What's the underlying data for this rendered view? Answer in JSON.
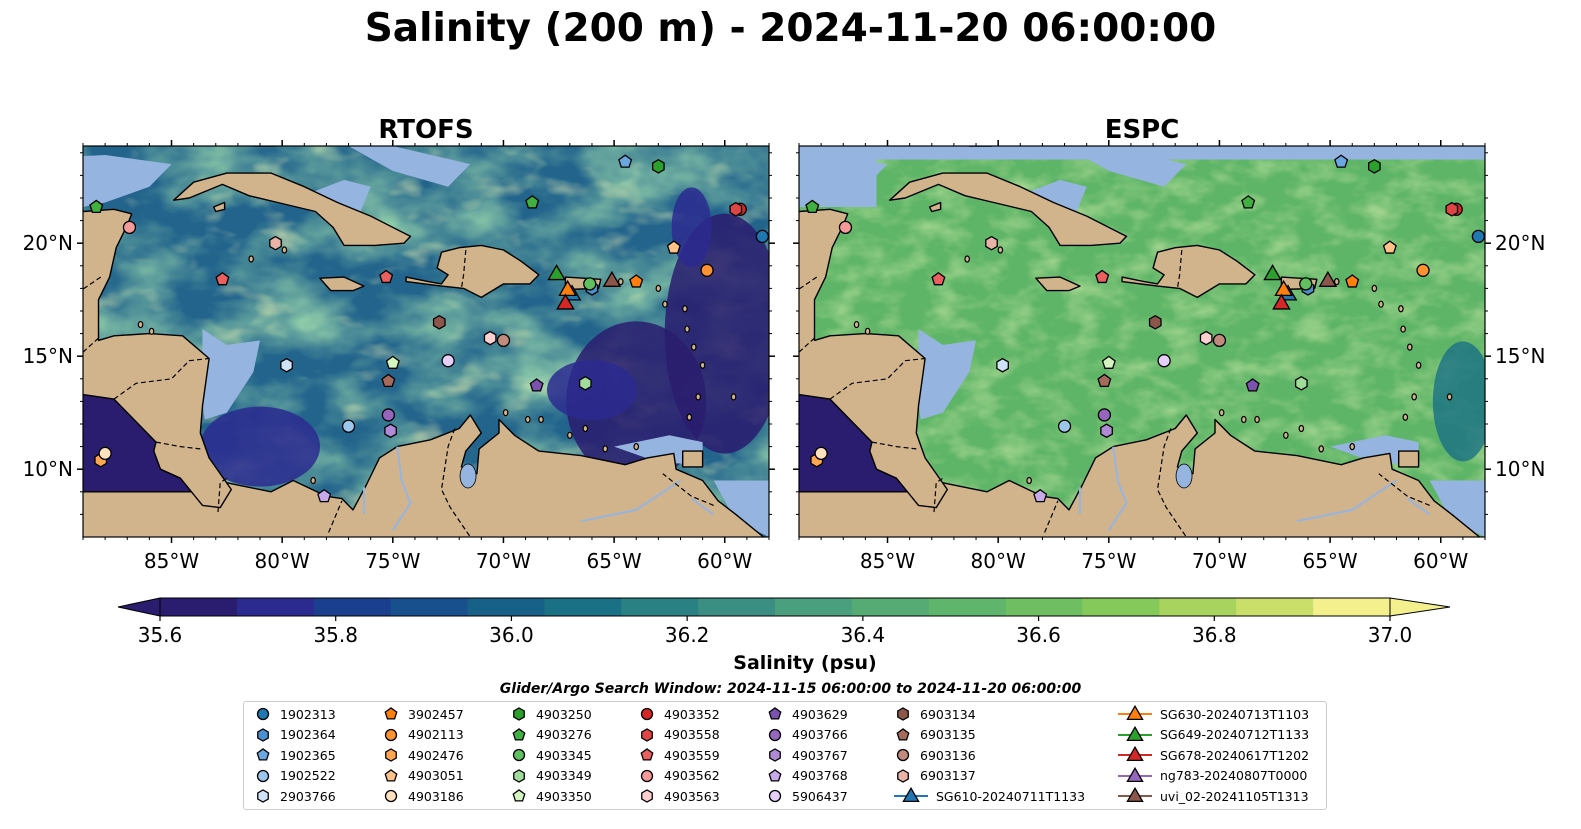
{
  "title": "Salinity (200 m) - 2024-11-20 06:00:00",
  "chart_data": [
    {
      "type": "heatmap",
      "title": "RTOFS",
      "x_ticks": [
        "85°W",
        "80°W",
        "75°W",
        "70°W",
        "65°W",
        "60°W"
      ],
      "y_ticks": [
        "20°N",
        "15°N",
        "10°N"
      ],
      "xlim": [
        -89,
        -58
      ],
      "ylim": [
        7,
        24.3
      ],
      "field_range": [
        35.6,
        37.0
      ]
    },
    {
      "type": "heatmap",
      "title": "ESPC",
      "x_ticks": [
        "85°W",
        "80°W",
        "75°W",
        "70°W",
        "65°W",
        "60°W"
      ],
      "y_ticks": [
        "20°N",
        "15°N",
        "10°N"
      ],
      "xlim": [
        -89,
        -58
      ],
      "ylim": [
        7,
        24.3
      ],
      "field_range": [
        35.6,
        37.0
      ]
    }
  ],
  "colorbar": {
    "label": "Salinity (psu)",
    "ticks": [
      "35.6",
      "35.8",
      "36.0",
      "36.2",
      "36.4",
      "36.6",
      "36.8",
      "37.0"
    ],
    "colors": [
      "#2a1c6e",
      "#2b2a8f",
      "#1b3f8f",
      "#17508c",
      "#176088",
      "#1a7084",
      "#2a8184",
      "#3a8f82",
      "#4a9f7e",
      "#56ab74",
      "#5fb56b",
      "#70be62",
      "#86c95b",
      "#a8d35e",
      "#cadf6a",
      "#f4f08e"
    ],
    "land_color": "#d2b48c",
    "shelf_color": "#96b4e0"
  },
  "search_window": "Glider/Argo Search Window: 2024-11-15 06:00:00 to 2024-11-20 06:00:00",
  "legend": {
    "columns": [
      [
        {
          "label": "1902313",
          "marker": "circle",
          "color": "#1f77b4"
        },
        {
          "label": "1902364",
          "marker": "hexagon",
          "color": "#4a8fcf"
        },
        {
          "label": "1902365",
          "marker": "pentagon",
          "color": "#6aa6e0"
        },
        {
          "label": "1902522",
          "marker": "circle",
          "color": "#9cc6ec"
        },
        {
          "label": "2903766",
          "marker": "hexagon",
          "color": "#cfe4f8"
        }
      ],
      [
        {
          "label": "3902457",
          "marker": "pentagon",
          "color": "#ff7f0e"
        },
        {
          "label": "4902113",
          "marker": "circle",
          "color": "#ff9230"
        },
        {
          "label": "4902476",
          "marker": "hexagon",
          "color": "#ffa650"
        },
        {
          "label": "4903051",
          "marker": "pentagon",
          "color": "#ffc38a"
        },
        {
          "label": "4903186",
          "marker": "circle",
          "color": "#ffe0bf"
        }
      ],
      [
        {
          "label": "4903250",
          "marker": "hexagon",
          "color": "#2ca02c"
        },
        {
          "label": "4903276",
          "marker": "pentagon",
          "color": "#40b040"
        },
        {
          "label": "4903345",
          "marker": "circle",
          "color": "#60c060"
        },
        {
          "label": "4903349",
          "marker": "hexagon",
          "color": "#a2dc9a"
        },
        {
          "label": "4903350",
          "marker": "pentagon",
          "color": "#d5f5c0"
        }
      ],
      [
        {
          "label": "4903352",
          "marker": "circle",
          "color": "#d62728"
        },
        {
          "label": "4903558",
          "marker": "hexagon",
          "color": "#e04545"
        },
        {
          "label": "4903559",
          "marker": "pentagon",
          "color": "#ea6060"
        },
        {
          "label": "4903562",
          "marker": "circle",
          "color": "#f59a9a"
        },
        {
          "label": "4903563",
          "marker": "hexagon",
          "color": "#fcd0cf"
        }
      ],
      [
        {
          "label": "4903629",
          "marker": "pentagon",
          "color": "#7b52ae"
        },
        {
          "label": "4903766",
          "marker": "circle",
          "color": "#9467bd"
        },
        {
          "label": "4903767",
          "marker": "hexagon",
          "color": "#b08ad6"
        },
        {
          "label": "4903768",
          "marker": "pentagon",
          "color": "#c8aaea"
        },
        {
          "label": "5906437",
          "marker": "circle",
          "color": "#e6d0fa"
        }
      ],
      [
        {
          "label": "6903134",
          "marker": "hexagon",
          "color": "#8c564b"
        },
        {
          "label": "6903135",
          "marker": "pentagon",
          "color": "#a66a5c"
        },
        {
          "label": "6903136",
          "marker": "circle",
          "color": "#c08a7c"
        },
        {
          "label": "6903137",
          "marker": "hexagon",
          "color": "#e8b4a8"
        },
        {
          "label": "SG610-20240711T1133",
          "marker": "triangle",
          "color": "#1f77b4"
        }
      ],
      [
        {
          "label": "SG630-20240713T1103",
          "marker": "triangle",
          "color": "#ff7f0e"
        },
        {
          "label": "SG649-20240712T1133",
          "marker": "triangle",
          "color": "#2ca02c"
        },
        {
          "label": "SG678-20240617T1202",
          "marker": "triangle",
          "color": "#d62728"
        },
        {
          "label": "ng783-20240807T0000",
          "marker": "triangle",
          "color": "#9467bd"
        },
        {
          "label": "uvi_02-20241105T1313",
          "marker": "triangle",
          "color": "#8c564b"
        }
      ]
    ]
  },
  "markers": [
    {
      "id": "1902313",
      "lon": -58.3,
      "lat": 20.3
    },
    {
      "id": "1902364",
      "lon": -66.0,
      "lat": 18.0
    },
    {
      "id": "1902365",
      "lon": -64.5,
      "lat": 23.6
    },
    {
      "id": "1902522",
      "lon": -77.0,
      "lat": 11.9
    },
    {
      "id": "2903766",
      "lon": -79.8,
      "lat": 14.6
    },
    {
      "id": "3902457",
      "lon": -64.0,
      "lat": 18.3
    },
    {
      "id": "4902113",
      "lon": -60.8,
      "lat": 18.8
    },
    {
      "id": "4902476",
      "lon": -88.2,
      "lat": 10.4
    },
    {
      "id": "4903051",
      "lon": -62.3,
      "lat": 19.8
    },
    {
      "id": "4903186",
      "lon": -88.0,
      "lat": 10.7
    },
    {
      "id": "4903250",
      "lon": -63.0,
      "lat": 23.4
    },
    {
      "id": "4903276",
      "lon": -68.7,
      "lat": 21.8
    },
    {
      "id": "4903345",
      "lon": -66.1,
      "lat": 18.2
    },
    {
      "id": "4903349",
      "lon": -66.3,
      "lat": 13.8
    },
    {
      "id": "4903350",
      "lon": -75.0,
      "lat": 14.7
    },
    {
      "id": "4903352",
      "lon": -59.3,
      "lat": 21.5
    },
    {
      "id": "4903558",
      "lon": -59.5,
      "lat": 21.5
    },
    {
      "id": "4903559",
      "lon": -75.3,
      "lat": 18.5
    },
    {
      "id": "4903562",
      "lon": -86.9,
      "lat": 20.7
    },
    {
      "id": "4903563",
      "lon": -70.6,
      "lat": 15.8
    },
    {
      "id": "4903629",
      "lon": -68.5,
      "lat": 13.7
    },
    {
      "id": "4903766",
      "lon": -75.2,
      "lat": 12.4
    },
    {
      "id": "4903767",
      "lon": -75.1,
      "lat": 11.7
    },
    {
      "id": "4903768",
      "lon": -78.1,
      "lat": 8.8
    },
    {
      "id": "5906437",
      "lon": -72.5,
      "lat": 14.8
    },
    {
      "id": "6903134",
      "lon": -72.9,
      "lat": 16.5
    },
    {
      "id": "6903135",
      "lon": -75.2,
      "lat": 13.9
    },
    {
      "id": "6903136",
      "lon": -70.0,
      "lat": 15.7
    },
    {
      "id": "6903137",
      "lon": -80.3,
      "lat": 20.0
    },
    {
      "id": "SG610-20240711T1133",
      "lon": -66.9,
      "lat": 17.7
    },
    {
      "id": "SG630-20240713T1103",
      "lon": -67.1,
      "lat": 17.9
    },
    {
      "id": "SG649-20240712T1133",
      "lon": -67.6,
      "lat": 18.6
    },
    {
      "id": "SG678-20240617T1202",
      "lon": -67.2,
      "lat": 17.3
    },
    {
      "id": "uvi_02-20241105T1313",
      "lon": -65.1,
      "lat": 18.3
    },
    {
      "id": "4903559b",
      "lon": -82.7,
      "lat": 18.4
    },
    {
      "id": "4903276b",
      "lon": -88.4,
      "lat": 21.6
    }
  ]
}
